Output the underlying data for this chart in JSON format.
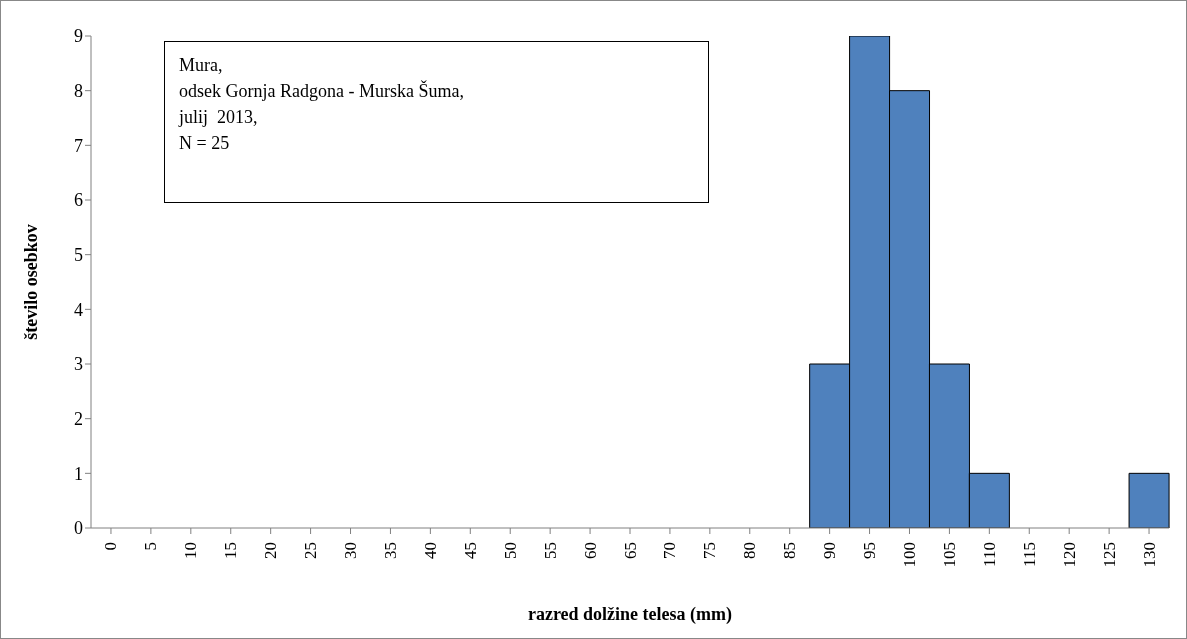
{
  "chart_data": {
    "type": "bar",
    "xlabel": "razred dolžine telesa (mm)",
    "ylabel": "število osebkov",
    "categories": [
      "0",
      "5",
      "10",
      "15",
      "20",
      "25",
      "30",
      "35",
      "40",
      "45",
      "50",
      "55",
      "60",
      "65",
      "70",
      "75",
      "80",
      "85",
      "90",
      "95",
      "100",
      "105",
      "110",
      "115",
      "120",
      "125",
      "130"
    ],
    "values": [
      0,
      0,
      0,
      0,
      0,
      0,
      0,
      0,
      0,
      0,
      0,
      0,
      0,
      0,
      0,
      0,
      0,
      0,
      3,
      9,
      8,
      3,
      1,
      0,
      0,
      0,
      1
    ],
    "color": "#4f81bd",
    "ylim": [
      0,
      9
    ],
    "yticks": [
      0,
      1,
      2,
      3,
      4,
      5,
      6,
      7,
      8,
      9
    ],
    "grid": false,
    "legend": false,
    "annotations": [
      "Mura,",
      "odsek Gornja Radgona - Murska Šuma,",
      "julij  2013,",
      "N = 25"
    ]
  }
}
